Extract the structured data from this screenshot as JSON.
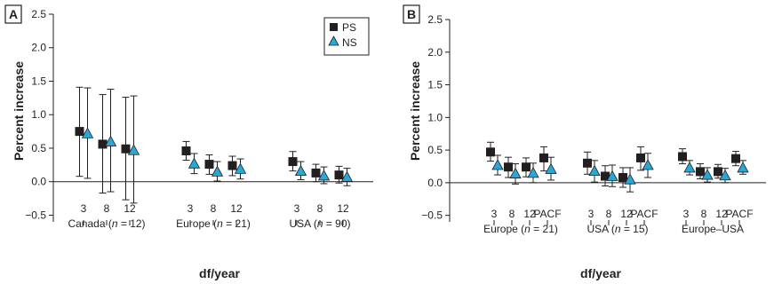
{
  "chart_data": [
    {
      "panel": "A",
      "type": "scatter",
      "ylabel": "Percent increase",
      "xlabel": "df/year",
      "ylim": [
        -0.6,
        2.5
      ],
      "yticks": [
        "2.5",
        "2.0",
        "1.5",
        "1.0",
        "0.5",
        "0.0",
        "−0.5"
      ],
      "legend": {
        "placement": "top-right",
        "entries": [
          "PS",
          "NS"
        ]
      },
      "groups": [
        {
          "label_pre": "Canada (",
          "label_n": "n",
          "label_post": " = 12)",
          "ticks": [
            "3",
            "8",
            "12"
          ]
        },
        {
          "label_pre": "Europe (",
          "label_n": "n",
          "label_post": " = 21)",
          "ticks": [
            "3",
            "8",
            "12"
          ]
        },
        {
          "label_pre": "USA (",
          "label_n": "n",
          "label_post": " = 90)",
          "ticks": [
            "3",
            "8",
            "12"
          ]
        }
      ],
      "series": [
        {
          "name": "PS",
          "marker": "square",
          "color": "#231f20",
          "points": [
            {
              "group": 0,
              "x": 0,
              "y": 0.75,
              "lo": 0.08,
              "hi": 1.41
            },
            {
              "group": 0,
              "x": 1,
              "y": 0.56,
              "lo": -0.17,
              "hi": 1.3
            },
            {
              "group": 0,
              "x": 2,
              "y": 0.49,
              "lo": -0.27,
              "hi": 1.26
            },
            {
              "group": 1,
              "x": 0,
              "y": 0.46,
              "lo": 0.32,
              "hi": 0.6
            },
            {
              "group": 1,
              "x": 1,
              "y": 0.26,
              "lo": 0.11,
              "hi": 0.4
            },
            {
              "group": 1,
              "x": 2,
              "y": 0.24,
              "lo": 0.09,
              "hi": 0.38
            },
            {
              "group": 2,
              "x": 0,
              "y": 0.3,
              "lo": 0.16,
              "hi": 0.45
            },
            {
              "group": 2,
              "x": 1,
              "y": 0.13,
              "lo": 0.0,
              "hi": 0.26
            },
            {
              "group": 2,
              "x": 2,
              "y": 0.1,
              "lo": -0.02,
              "hi": 0.23
            }
          ]
        },
        {
          "name": "NS",
          "marker": "triangle",
          "color": "#29a8d8",
          "points": [
            {
              "group": 0,
              "x": 0,
              "y": 0.72,
              "lo": 0.05,
              "hi": 1.4
            },
            {
              "group": 0,
              "x": 1,
              "y": 0.6,
              "lo": -0.15,
              "hi": 1.38
            },
            {
              "group": 0,
              "x": 2,
              "y": 0.47,
              "lo": -0.32,
              "hi": 1.28
            },
            {
              "group": 1,
              "x": 0,
              "y": 0.27,
              "lo": 0.12,
              "hi": 0.42
            },
            {
              "group": 1,
              "x": 1,
              "y": 0.15,
              "lo": 0.01,
              "hi": 0.3
            },
            {
              "group": 1,
              "x": 2,
              "y": 0.19,
              "lo": 0.04,
              "hi": 0.34
            },
            {
              "group": 2,
              "x": 0,
              "y": 0.16,
              "lo": 0.03,
              "hi": 0.3
            },
            {
              "group": 2,
              "x": 1,
              "y": 0.09,
              "lo": -0.03,
              "hi": 0.22
            },
            {
              "group": 2,
              "x": 2,
              "y": 0.07,
              "lo": -0.06,
              "hi": 0.2
            }
          ]
        }
      ]
    },
    {
      "panel": "B",
      "type": "scatter",
      "ylabel": "Percent increase",
      "xlabel": "df/year",
      "ylim": [
        -0.6,
        2.5
      ],
      "yticks": [
        "2.5",
        "2.0",
        "1.5",
        "1.0",
        "0.5",
        "0.0",
        "−0.5"
      ],
      "groups": [
        {
          "label_pre": "Europe (",
          "label_n": "n",
          "label_post": " = 21)",
          "ticks": [
            "3",
            "8",
            "12",
            "PACF"
          ]
        },
        {
          "label_pre": "USA (",
          "label_n": "n",
          "label_post": " = 15)",
          "ticks": [
            "3",
            "8",
            "12",
            "PACF"
          ]
        },
        {
          "label_pre": "Europe–USA",
          "label_n": "",
          "label_post": "",
          "ticks": [
            "3",
            "8",
            "12",
            "PACF"
          ]
        }
      ],
      "series": [
        {
          "name": "PS",
          "marker": "square",
          "color": "#231f20",
          "points": [
            {
              "group": 0,
              "x": 0,
              "y": 0.47,
              "lo": 0.33,
              "hi": 0.62
            },
            {
              "group": 0,
              "x": 1,
              "y": 0.24,
              "lo": 0.08,
              "hi": 0.39
            },
            {
              "group": 0,
              "x": 2,
              "y": 0.24,
              "lo": 0.09,
              "hi": 0.38
            },
            {
              "group": 0,
              "x": 3,
              "y": 0.38,
              "lo": 0.18,
              "hi": 0.55
            },
            {
              "group": 1,
              "x": 0,
              "y": 0.3,
              "lo": 0.13,
              "hi": 0.47
            },
            {
              "group": 1,
              "x": 1,
              "y": 0.1,
              "lo": -0.05,
              "hi": 0.26
            },
            {
              "group": 1,
              "x": 2,
              "y": 0.08,
              "lo": -0.07,
              "hi": 0.23
            },
            {
              "group": 1,
              "x": 3,
              "y": 0.38,
              "lo": 0.19,
              "hi": 0.55
            },
            {
              "group": 2,
              "x": 0,
              "y": 0.4,
              "lo": 0.29,
              "hi": 0.52
            },
            {
              "group": 2,
              "x": 1,
              "y": 0.17,
              "lo": 0.06,
              "hi": 0.29
            },
            {
              "group": 2,
              "x": 2,
              "y": 0.17,
              "lo": 0.07,
              "hi": 0.28
            },
            {
              "group": 2,
              "x": 3,
              "y": 0.37,
              "lo": 0.26,
              "hi": 0.48
            }
          ]
        },
        {
          "name": "NS",
          "marker": "triangle",
          "color": "#29a8d8",
          "points": [
            {
              "group": 0,
              "x": 0,
              "y": 0.27,
              "lo": 0.12,
              "hi": 0.42
            },
            {
              "group": 0,
              "x": 1,
              "y": 0.14,
              "lo": -0.02,
              "hi": 0.29
            },
            {
              "group": 0,
              "x": 2,
              "y": 0.15,
              "lo": 0.0,
              "hi": 0.3
            },
            {
              "group": 0,
              "x": 3,
              "y": 0.21,
              "lo": 0.04,
              "hi": 0.39
            },
            {
              "group": 1,
              "x": 0,
              "y": 0.18,
              "lo": 0.01,
              "hi": 0.34
            },
            {
              "group": 1,
              "x": 1,
              "y": 0.1,
              "lo": -0.06,
              "hi": 0.27
            },
            {
              "group": 1,
              "x": 2,
              "y": 0.05,
              "lo": -0.14,
              "hi": 0.23
            },
            {
              "group": 1,
              "x": 3,
              "y": 0.27,
              "lo": 0.08,
              "hi": 0.45
            },
            {
              "group": 2,
              "x": 0,
              "y": 0.23,
              "lo": 0.12,
              "hi": 0.34
            },
            {
              "group": 2,
              "x": 1,
              "y": 0.12,
              "lo": 0.01,
              "hi": 0.23
            },
            {
              "group": 2,
              "x": 2,
              "y": 0.11,
              "lo": 0.0,
              "hi": 0.22
            },
            {
              "group": 2,
              "x": 3,
              "y": 0.23,
              "lo": 0.13,
              "hi": 0.34
            }
          ]
        }
      ]
    }
  ]
}
